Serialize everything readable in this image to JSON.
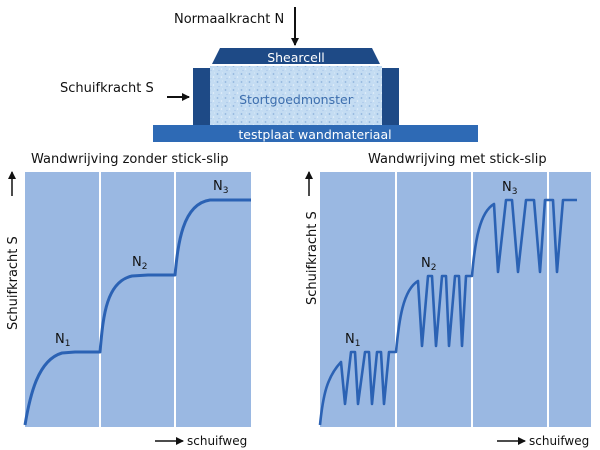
{
  "apparatus": {
    "normal_force_label": "Normaalkracht N",
    "shear_force_label": "Schuifkracht S",
    "shearcell_label": "Shearcell",
    "sample_label": "Stortgoedmonster",
    "plate_label": "testplaat wandmateriaal"
  },
  "charts": [
    {
      "title": "Wandwrijving zonder stick-slip",
      "ylabel": "Schuifkracht S",
      "xlabel": "schuifweg",
      "levels": [
        {
          "main": "N",
          "sub": "1"
        },
        {
          "main": "N",
          "sub": "2"
        },
        {
          "main": "N",
          "sub": "3"
        }
      ]
    },
    {
      "title": "Wandwrijving met stick-slip",
      "ylabel": "Schuifkracht S",
      "xlabel": "schuifweg",
      "levels": [
        {
          "main": "N",
          "sub": "1"
        },
        {
          "main": "N",
          "sub": "2"
        },
        {
          "main": "N",
          "sub": "3"
        }
      ]
    }
  ],
  "colors": {
    "panel_bg": "#9ab8e2",
    "curve": "#2b62b4",
    "divider": "#ffffff",
    "apparatus_dark": "#1e4a86",
    "sample_fill": "#bcd6f0"
  }
}
